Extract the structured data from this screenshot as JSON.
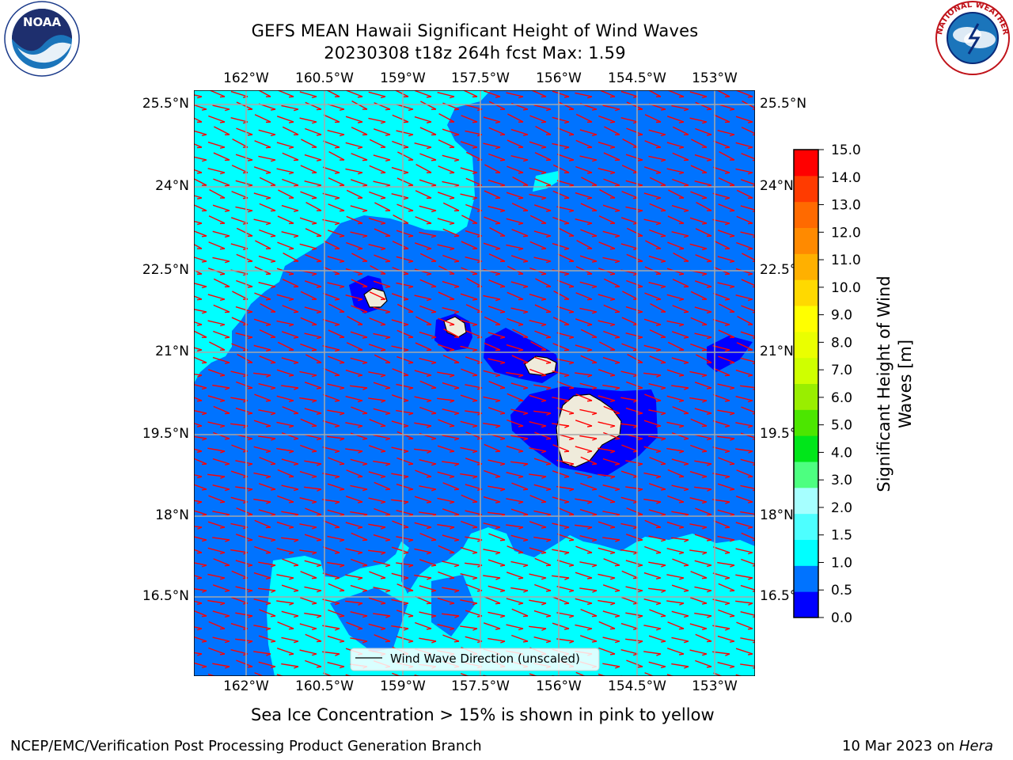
{
  "header": {
    "title_line1": "GEFS MEAN Hawaii Significant Height of Wind Waves",
    "title_line2": "20230308 t18z 264h fcst   Max: 1.59"
  },
  "logos": {
    "left": {
      "icon": "noaa-logo-icon",
      "text": "NOAA"
    },
    "right": {
      "icon": "national-weather-service-logo-icon",
      "text": "NATIONAL WEATHER SERVICE"
    }
  },
  "map": {
    "lon_ticks": [
      "162°W",
      "160.5°W",
      "159°W",
      "157.5°W",
      "156°W",
      "154.5°W",
      "153°W"
    ],
    "lat_ticks": [
      "25.5°N",
      "24°N",
      "22.5°N",
      "21°N",
      "19.5°N",
      "18°N",
      "16.5°N"
    ],
    "legend_label": "Wind Wave Direction (unscaled)",
    "colors": {
      "ocean_0_0.5": "#0000ff",
      "ocean_0.5_1": "#0073ff",
      "ocean_1_1.5": "#00ffff",
      "land": "#efebdb",
      "arrows": "#ff0000",
      "grid": "#a8a8a8"
    }
  },
  "colorbar": {
    "title_line1": "Significant Height of Wind",
    "title_line2": "Waves [m]",
    "ticks": [
      "15.0",
      "14.0",
      "13.0",
      "12.0",
      "11.0",
      "10.0",
      "9.0",
      "8.0",
      "7.0",
      "6.0",
      "5.0",
      "4.0",
      "3.0",
      "2.0",
      "1.5",
      "1.0",
      "0.5",
      "0.0"
    ],
    "colors": [
      "#0000ff",
      "#0073ff",
      "#00ffff",
      "#4dffff",
      "#a6ffff",
      "#4dff80",
      "#00e61a",
      "#4ce600",
      "#99ee00",
      "#cfff00",
      "#eaff00",
      "#ffff00",
      "#ffd900",
      "#ffb000",
      "#ff8a00",
      "#ff6a00",
      "#ff3b00",
      "#ff0000"
    ]
  },
  "footer": {
    "sea_ice_note": "Sea Ice Concentration > 15% is shown in pink to yellow",
    "credit": "NCEP/EMC/Verification Post Processing Product Generation Branch",
    "date_prefix": "10 Mar 2023 on ",
    "host": "Hera"
  }
}
